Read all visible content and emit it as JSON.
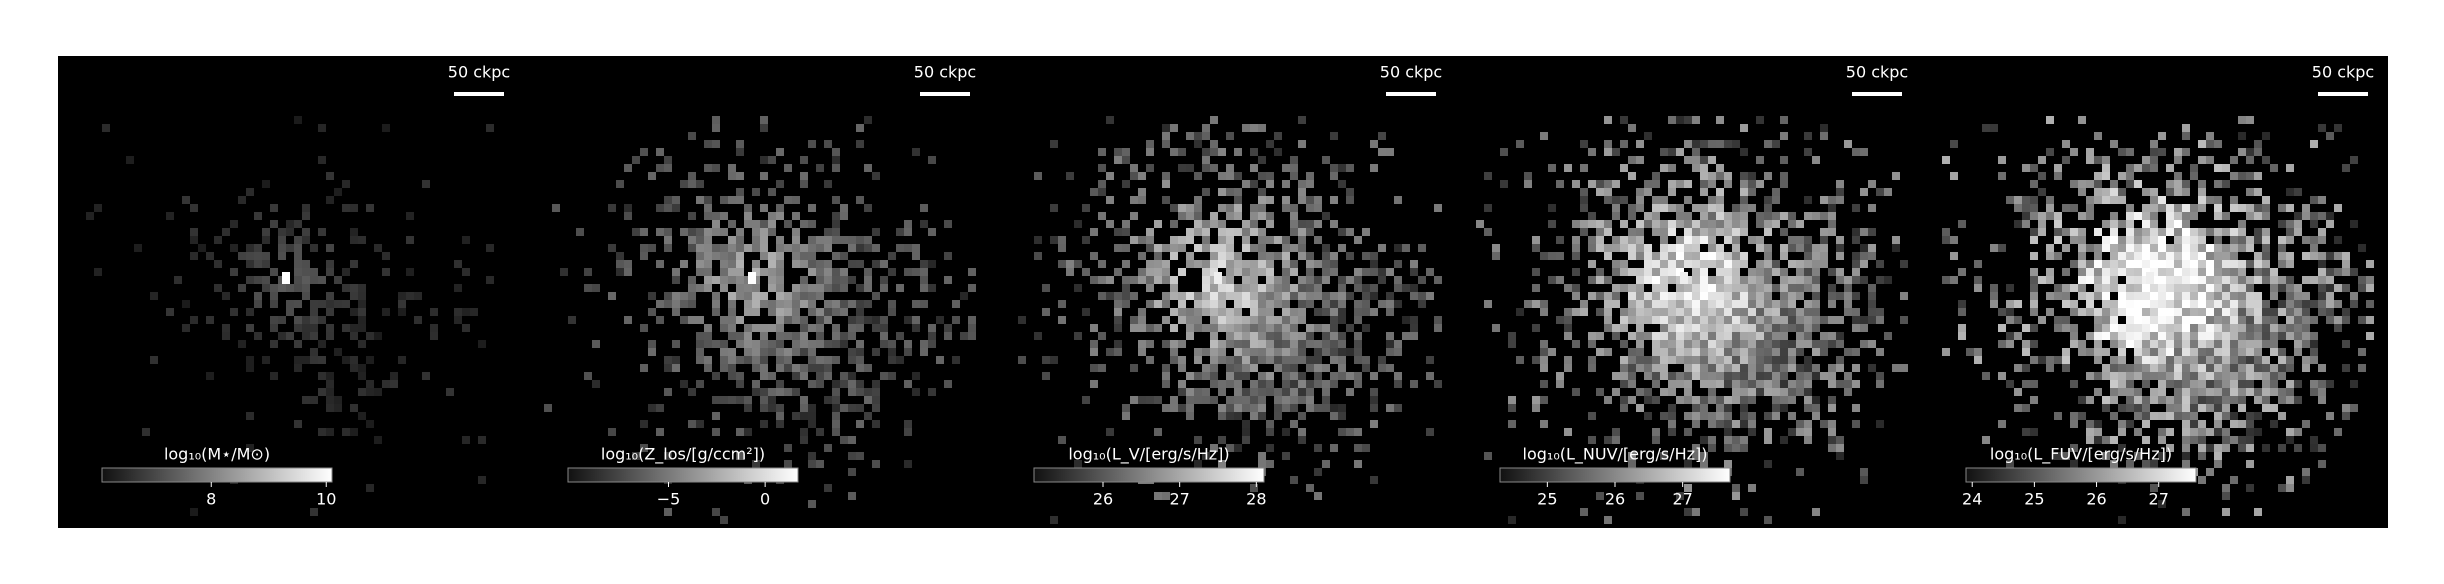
{
  "chart_data": [
    {
      "type": "image",
      "scale_bar_label": "50 ckpc",
      "colorbar": {
        "label": "log₁₀(M⋆/M⊙)",
        "lim": [
          6.1,
          10.1
        ],
        "ticks": [
          8,
          10
        ]
      }
    },
    {
      "type": "image",
      "scale_bar_label": "50 ckpc",
      "colorbar": {
        "label": "log₁₀(Z_los/[g/ccm²])",
        "lim": [
          -10.2,
          1.7
        ],
        "ticks": [
          {
            "value": -5,
            "label": "−5"
          },
          0
        ]
      }
    },
    {
      "type": "image",
      "scale_bar_label": "50 ckpc",
      "colorbar": {
        "label": "log₁₀(L_V/[erg/s/Hz])",
        "lim": [
          25.1,
          28.1
        ],
        "ticks": [
          26,
          27,
          28
        ]
      }
    },
    {
      "type": "image",
      "scale_bar_label": "50 ckpc",
      "colorbar": {
        "label": "log₁₀(L_NUV/[erg/s/Hz])",
        "lim": [
          24.3,
          27.7
        ],
        "ticks": [
          25,
          26,
          27
        ]
      }
    },
    {
      "type": "image",
      "scale_bar_label": "50 ckpc",
      "colorbar": {
        "label": "log₁₀(L_FUV/[erg/s/Hz])",
        "lim": [
          23.9,
          27.6
        ],
        "ticks": [
          24,
          25,
          26,
          27
        ]
      }
    }
  ]
}
